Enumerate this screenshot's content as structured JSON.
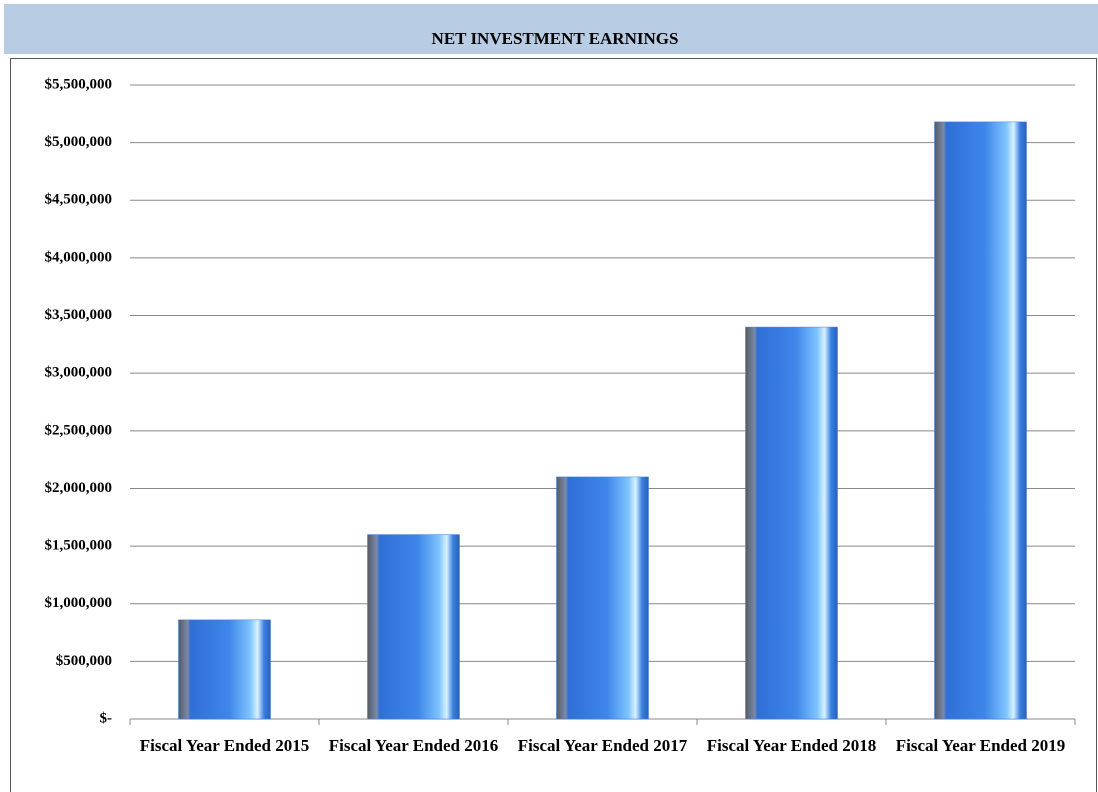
{
  "chart_data": {
    "type": "bar",
    "title": "NET INVESTMENT EARNINGS",
    "categories": [
      "Fiscal Year Ended 2015",
      "Fiscal Year Ended 2016",
      "Fiscal Year Ended 2017",
      "Fiscal Year Ended 2018",
      "Fiscal Year Ended 2019"
    ],
    "values": [
      860000,
      1600000,
      2100000,
      3400000,
      5180000
    ],
    "color": "#3f7fdc",
    "ylim": [
      0,
      5500000
    ],
    "yticks": [
      {
        "value": 0,
        "label": "$-"
      },
      {
        "value": 500000,
        "label": "$500,000"
      },
      {
        "value": 1000000,
        "label": "$1,000,000"
      },
      {
        "value": 1500000,
        "label": "$1,500,000"
      },
      {
        "value": 2000000,
        "label": "$2,000,000"
      },
      {
        "value": 2500000,
        "label": "$2,500,000"
      },
      {
        "value": 3000000,
        "label": "$3,000,000"
      },
      {
        "value": 3500000,
        "label": "$3,500,000"
      },
      {
        "value": 4000000,
        "label": "$4,000,000"
      },
      {
        "value": 4500000,
        "label": "$4,500,000"
      },
      {
        "value": 5000000,
        "label": "$5,000,000"
      },
      {
        "value": 5500000,
        "label": "$5,500,000"
      }
    ],
    "grid": true
  }
}
